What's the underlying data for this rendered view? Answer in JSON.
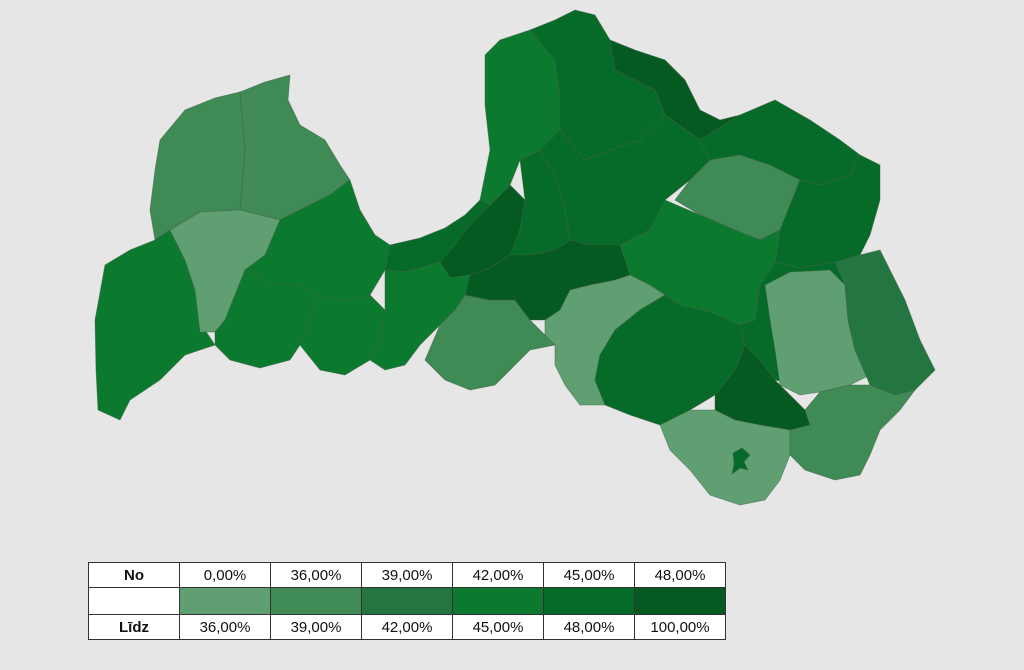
{
  "legend": {
    "from_label": "No",
    "to_label": "Līdz",
    "classes": [
      {
        "from": "0,00%",
        "to": "36,00%",
        "color": "#5f9f72"
      },
      {
        "from": "36,00%",
        "to": "39,00%",
        "color": "#3f8a55"
      },
      {
        "from": "39,00%",
        "to": "42,00%",
        "color": "#23763f"
      },
      {
        "from": "42,00%",
        "to": "45,00%",
        "color": "#0b7a2f"
      },
      {
        "from": "45,00%",
        "to": "48,00%",
        "color": "#066a28"
      },
      {
        "from": "48,00%",
        "to": "100,00%",
        "color": "#045a20"
      }
    ]
  },
  "map": {
    "background": "#e6e6e6",
    "regions": [
      {
        "name": "kurzeme-northwest",
        "class": 1
      },
      {
        "name": "kurzeme-north",
        "class": 1
      },
      {
        "name": "kurzeme-west",
        "class": 3
      },
      {
        "name": "kurzeme-central",
        "class": 0
      },
      {
        "name": "kurzeme-east",
        "class": 3
      },
      {
        "name": "kurzeme-south",
        "class": 3
      },
      {
        "name": "zemgale-west",
        "class": 3
      },
      {
        "name": "gulf-coast-west",
        "class": 4
      },
      {
        "name": "riga-area",
        "class": 5
      },
      {
        "name": "riga-east",
        "class": 4
      },
      {
        "name": "zemgale-central",
        "class": 3
      },
      {
        "name": "zemgale-south",
        "class": 1
      },
      {
        "name": "vidzeme-coast",
        "class": 3
      },
      {
        "name": "vidzeme-north",
        "class": 4
      },
      {
        "name": "vidzeme-northeast",
        "class": 5
      },
      {
        "name": "vidzeme-central",
        "class": 4
      },
      {
        "name": "vidzeme-east-central",
        "class": 4
      },
      {
        "name": "vidzeme-east-light",
        "class": 1
      },
      {
        "name": "vidzeme-far-east",
        "class": 4
      },
      {
        "name": "vidzeme-south",
        "class": 3
      },
      {
        "name": "riga-inland",
        "class": 5
      },
      {
        "name": "aizkraukle",
        "class": 0
      },
      {
        "name": "jekabpils",
        "class": 4
      },
      {
        "name": "madona-south",
        "class": 4
      },
      {
        "name": "rezekne-light",
        "class": 0
      },
      {
        "name": "ludza",
        "class": 2
      },
      {
        "name": "preili",
        "class": 5
      },
      {
        "name": "daugavpils",
        "class": 0
      },
      {
        "name": "kraslava",
        "class": 1
      },
      {
        "name": "daugavpils-city",
        "class": 4
      }
    ]
  }
}
